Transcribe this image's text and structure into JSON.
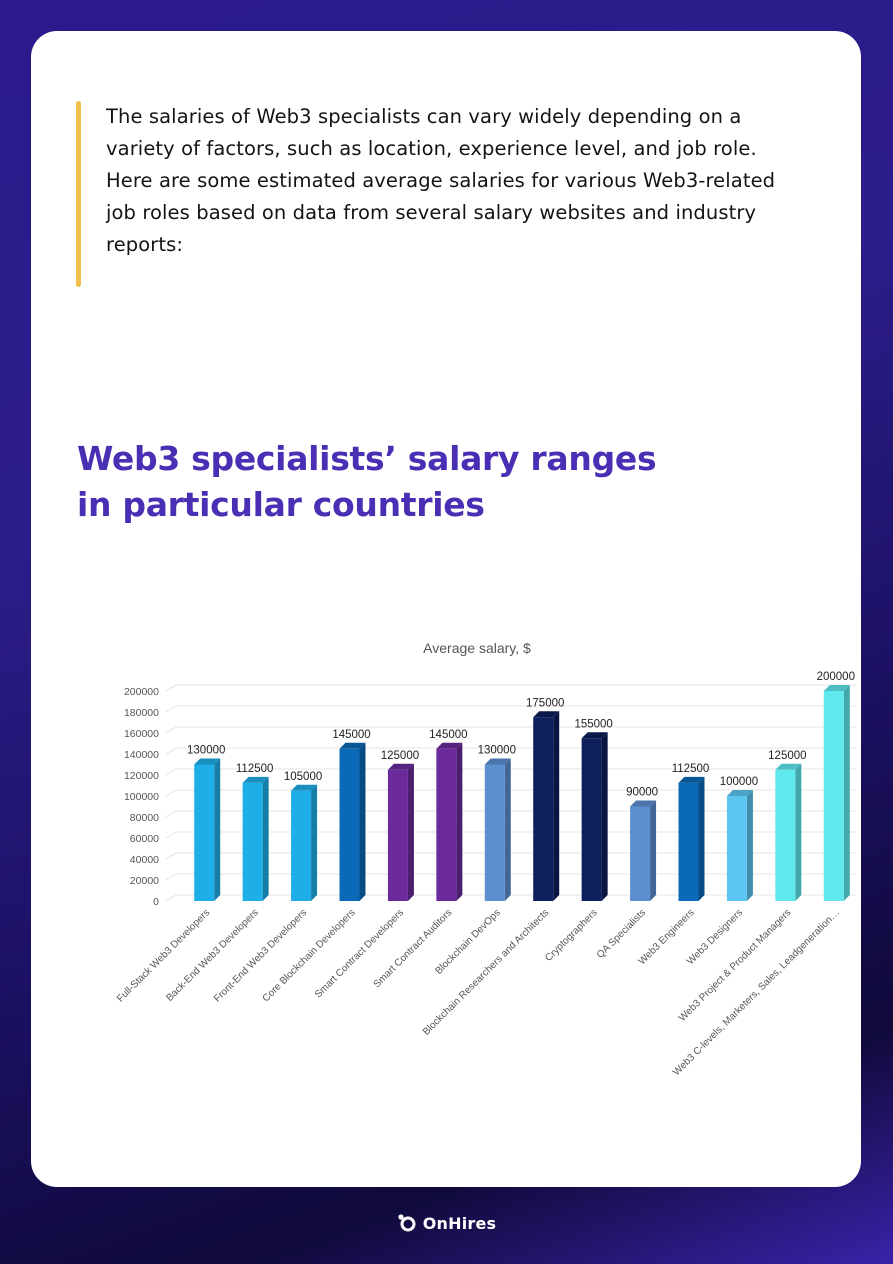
{
  "intro": {
    "lines": [
      "The salaries of Web3 specialists can vary widely depending on a",
      "variety of factors, such as location, experience level, and job role.",
      "Here are some estimated average salaries for various Web3-related",
      "job roles based on data from several salary websites and industry",
      "reports:"
    ]
  },
  "heading": {
    "line1": "Web3 specialists’ salary ranges",
    "line2": "in particular countries"
  },
  "chart_data": {
    "type": "bar",
    "title": "Average salary, $",
    "xlabel": "",
    "ylabel": "",
    "ylim": [
      0,
      200000
    ],
    "yticks": [
      0,
      20000,
      40000,
      60000,
      80000,
      100000,
      120000,
      140000,
      160000,
      180000,
      200000
    ],
    "grid": true,
    "categories": [
      "Full-Stack Web3 Developers",
      "Back-End Web3 Developers",
      "Front-End Web3 Developers",
      "Core Blockchain Developers",
      "Smart Contract Developers",
      "Smart Contract Auditors",
      "Blockchain DevOps",
      "Blockchain Researchers and Architects",
      "Cryptographers",
      "QA Specialists",
      "Web3 Engineers",
      "Web3 Designers",
      "Web3 Project & Product Managers",
      "Web3 C-levels, Marketers, Sales, Leadgeneration…"
    ],
    "values": [
      130000,
      112500,
      105000,
      145000,
      125000,
      145000,
      130000,
      175000,
      155000,
      90000,
      112500,
      100000,
      125000,
      200000
    ],
    "colors": [
      "#1eaee8",
      "#1eaee8",
      "#1eaee8",
      "#0b6ab8",
      "#6a2a9c",
      "#6a2a9c",
      "#5b8fd0",
      "#0d1f5c",
      "#0d1f5c",
      "#5b8fd0",
      "#0b6ab8",
      "#5cc5f2",
      "#5fe8ee",
      "#5fe8ee"
    ]
  },
  "footer": {
    "brand": "OnHires",
    "logo_icon": "onhires-logo-icon"
  }
}
